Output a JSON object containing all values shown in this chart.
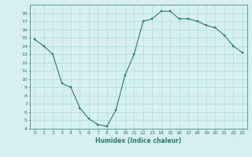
{
  "x": [
    0,
    1,
    2,
    3,
    4,
    5,
    6,
    7,
    8,
    9,
    10,
    11,
    12,
    13,
    14,
    15,
    16,
    17,
    18,
    19,
    20,
    21,
    22,
    23
  ],
  "y": [
    14.8,
    14.0,
    13.0,
    9.5,
    9.0,
    6.5,
    5.2,
    4.5,
    4.3,
    6.3,
    10.5,
    13.0,
    17.0,
    17.3,
    18.2,
    18.2,
    17.3,
    17.3,
    17.0,
    16.5,
    16.2,
    15.3,
    14.0,
    13.2
  ],
  "line_color": "#2d7a6e",
  "marker": "s",
  "marker_size": 1.5,
  "bg_color": "#d6f0f0",
  "grid_color": "#a8d8d8",
  "xlabel": "Humidex (Indice chaleur)",
  "xlabel_fontsize": 5.5,
  "tick_fontsize": 4.5,
  "ylim": [
    4,
    19
  ],
  "xlim": [
    -0.5,
    23.5
  ],
  "yticks": [
    4,
    5,
    6,
    7,
    8,
    9,
    10,
    11,
    12,
    13,
    14,
    15,
    16,
    17,
    18
  ],
  "xticks": [
    0,
    1,
    2,
    3,
    4,
    5,
    6,
    7,
    8,
    9,
    10,
    11,
    12,
    13,
    14,
    15,
    16,
    17,
    18,
    19,
    20,
    21,
    22,
    23
  ],
  "linewidth": 0.8,
  "spine_linewidth": 0.5
}
